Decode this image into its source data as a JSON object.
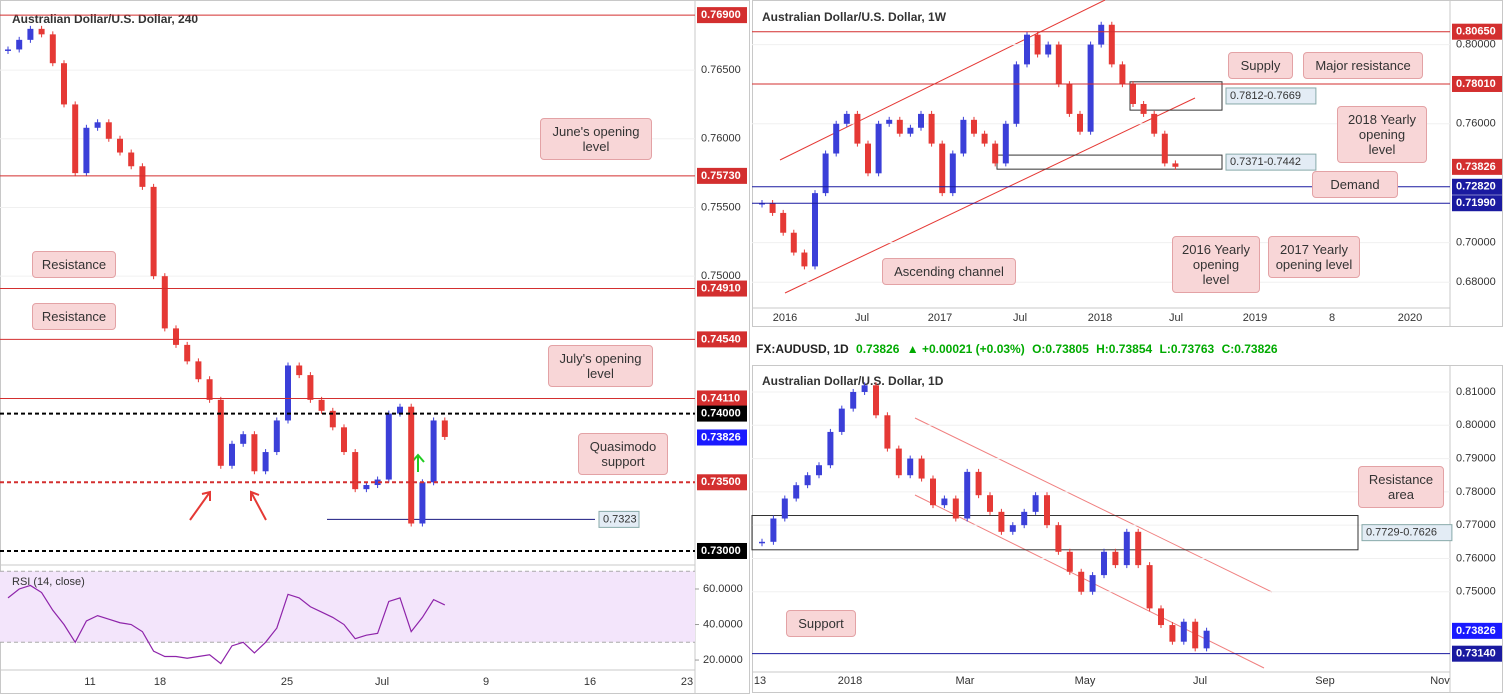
{
  "chart_data": [
    {
      "type": "candlestick",
      "title": "Australian Dollar/U.S. Dollar, 240",
      "values": [
        0.7665,
        0.7672,
        0.768,
        0.7676,
        0.7655,
        0.7625,
        0.7575,
        0.7608,
        0.7612,
        0.76,
        0.759,
        0.758,
        0.7565,
        0.75,
        0.7462,
        0.745,
        0.7438,
        0.7425,
        0.741,
        0.7362,
        0.7378,
        0.7385,
        0.7358,
        0.7372,
        0.7395,
        0.7435,
        0.7428,
        0.741,
        0.7402,
        0.739,
        0.7372,
        0.7345,
        0.7348,
        0.7352,
        0.74,
        0.7405,
        0.732,
        0.735,
        0.7395,
        0.7383
      ],
      "up_color": "#3b3fd8",
      "down_color": "#e53935",
      "ylim": [
        0.72898,
        0.7701
      ],
      "yticks": [
        {
          "value": 0.765,
          "label": "0.76500"
        },
        {
          "value": 0.76,
          "label": "0.76000"
        },
        {
          "value": 0.755,
          "label": "0.75500"
        },
        {
          "value": 0.75,
          "label": "0.75000"
        }
      ],
      "xticks": [
        "11",
        "18",
        "25",
        "Jul",
        "9",
        "16",
        "23"
      ],
      "levels": [
        {
          "value": 0.769,
          "label": "0.76900",
          "color": "#d32f2f",
          "style": "solid"
        },
        {
          "value": 0.7573,
          "label": "0.75730",
          "color": "#d32f2f",
          "style": "solid"
        },
        {
          "value": 0.7491,
          "label": "0.74910",
          "color": "#d32f2f",
          "style": "solid"
        },
        {
          "value": 0.7454,
          "label": "0.74540",
          "color": "#d32f2f",
          "style": "solid"
        },
        {
          "value": 0.7411,
          "label": "0.74110",
          "color": "#d32f2f",
          "style": "solid"
        },
        {
          "value": 0.74,
          "label": "0.74000",
          "color": "#000000",
          "style": "dashed"
        },
        {
          "value": 0.73826,
          "label": "0.73826",
          "color": "#1a1aff",
          "style": "none"
        },
        {
          "value": 0.735,
          "label": "0.73500",
          "color": "#d32f2f",
          "style": "dashed"
        },
        {
          "value": 0.73,
          "label": "0.73000",
          "color": "#000000",
          "style": "dashed"
        }
      ],
      "lines": [
        {
          "value": 0.7323,
          "label": "0.7323"
        }
      ],
      "annotations": [
        "June's opening level",
        "Resistance",
        "Resistance",
        "July's opening level",
        "Quasimodo support"
      ],
      "rsi": {
        "title": "RSI (14, close)",
        "color": "#8e24aa",
        "values": [
          55,
          60,
          62,
          58,
          48,
          40,
          30,
          42,
          45,
          43,
          41,
          40,
          36,
          25,
          22,
          22,
          21,
          22,
          23,
          18,
          28,
          30,
          24,
          30,
          38,
          57,
          55,
          50,
          47,
          44,
          40,
          32,
          34,
          35,
          53,
          55,
          36,
          44,
          54,
          51
        ],
        "band": [
          30,
          70
        ],
        "ylim": [
          14.4,
          73.5
        ],
        "yticks": [
          {
            "value": 60,
            "label": "60.0000"
          },
          {
            "value": 40,
            "label": "40.0000"
          },
          {
            "value": 20,
            "label": "20.0000"
          }
        ]
      }
    },
    {
      "type": "candlestick",
      "title": "Australian Dollar/U.S. Dollar, 1W",
      "values": [
        0.72,
        0.715,
        0.705,
        0.695,
        0.688,
        0.725,
        0.745,
        0.76,
        0.765,
        0.75,
        0.735,
        0.76,
        0.762,
        0.755,
        0.758,
        0.765,
        0.75,
        0.725,
        0.745,
        0.762,
        0.755,
        0.75,
        0.74,
        0.76,
        0.79,
        0.805,
        0.795,
        0.8,
        0.78,
        0.765,
        0.756,
        0.8,
        0.81,
        0.79,
        0.78,
        0.77,
        0.765,
        0.755,
        0.74,
        0.7383
      ],
      "up_color": "#3b3fd8",
      "down_color": "#e53935",
      "ylim": [
        0.667,
        0.8225
      ],
      "yticks": [
        {
          "value": 0.8,
          "label": "0.80000"
        },
        {
          "value": 0.76,
          "label": "0.76000"
        },
        {
          "value": 0.7,
          "label": "0.70000"
        },
        {
          "value": 0.68,
          "label": "0.68000"
        }
      ],
      "xticks": [
        "2016",
        "Jul",
        "2017",
        "Jul",
        "2018",
        "Jul",
        "2019",
        "8",
        "2020"
      ],
      "levels": [
        {
          "value": 0.8065,
          "label": "0.80650",
          "color": "#d32f2f",
          "style": "solid"
        },
        {
          "value": 0.7801,
          "label": "0.78010",
          "color": "#d32f2f",
          "style": "solid"
        },
        {
          "value": 0.73826,
          "label": "0.73826",
          "color": "#d32f2f",
          "style": "none"
        },
        {
          "value": 0.7282,
          "label": "0.72820",
          "color": "#1a1aa0",
          "style": "solid"
        },
        {
          "value": 0.7199,
          "label": "0.71990",
          "color": "#1a1aa0",
          "style": "solid"
        }
      ],
      "zones": [
        {
          "high": 0.7812,
          "low": 0.7669,
          "label": "0.7812-0.7669"
        },
        {
          "high": 0.7442,
          "low": 0.7371,
          "label": "0.7371-0.7442"
        }
      ],
      "annotations": [
        "Supply",
        "Major resistance",
        "2018 Yearly opening level",
        "Demand",
        "2016 Yearly opening level",
        "2017 Yearly opening level",
        "Ascending channel"
      ]
    },
    {
      "type": "candlestick",
      "title": "Australian Dollar/U.S. Dollar, 1D",
      "values": [
        0.765,
        0.772,
        0.778,
        0.782,
        0.785,
        0.788,
        0.798,
        0.805,
        0.81,
        0.812,
        0.803,
        0.793,
        0.785,
        0.79,
        0.784,
        0.776,
        0.778,
        0.772,
        0.786,
        0.779,
        0.774,
        0.768,
        0.77,
        0.774,
        0.779,
        0.77,
        0.762,
        0.756,
        0.75,
        0.755,
        0.762,
        0.758,
        0.768,
        0.758,
        0.745,
        0.74,
        0.735,
        0.741,
        0.733,
        0.7383
      ],
      "up_color": "#3b3fd8",
      "down_color": "#e53935",
      "ylim": [
        0.7259,
        0.8181
      ],
      "yticks": [
        {
          "value": 0.81,
          "label": "0.81000"
        },
        {
          "value": 0.8,
          "label": "0.80000"
        },
        {
          "value": 0.79,
          "label": "0.79000"
        },
        {
          "value": 0.78,
          "label": "0.78000"
        },
        {
          "value": 0.77,
          "label": "0.77000"
        },
        {
          "value": 0.76,
          "label": "0.76000"
        },
        {
          "value": 0.75,
          "label": "0.75000"
        }
      ],
      "xticks": [
        "13",
        "2018",
        "Mar",
        "May",
        "Jul",
        "Sep",
        "Nov"
      ],
      "levels": [
        {
          "value": 0.73826,
          "label": "0.73826",
          "color": "#1a1aff",
          "style": "none"
        },
        {
          "value": 0.7314,
          "label": "0.73140",
          "color": "#1a1aa0",
          "style": "solid"
        }
      ],
      "zones": [
        {
          "high": 0.7729,
          "low": 0.7626,
          "label": "0.7729-0.7626"
        }
      ],
      "annotations": [
        "Resistance area",
        "Support"
      ]
    }
  ],
  "info_bar": {
    "symbol": "FX:AUDUSD, 1D",
    "last": "0.73826",
    "change": "▲ +0.00021 (+0.03%)",
    "ohlc": [
      "O:0.73805",
      "H:0.73854",
      "L:0.73763",
      "C:0.73826"
    ]
  }
}
